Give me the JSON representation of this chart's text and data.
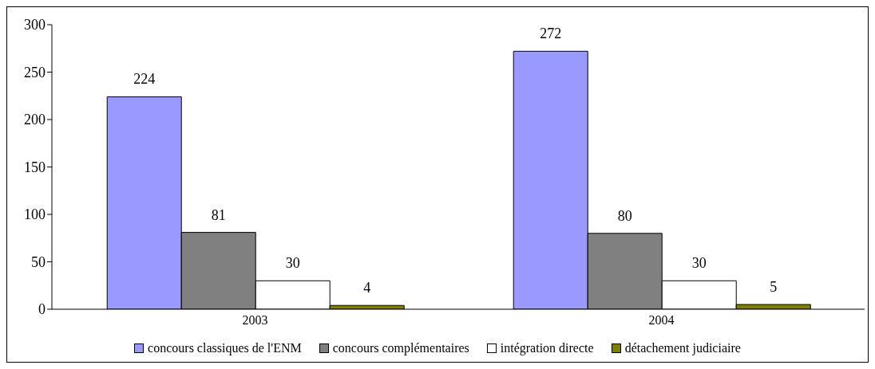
{
  "chart_data": {
    "type": "bar",
    "categories": [
      "2003",
      "2004"
    ],
    "series": [
      {
        "name": "concours classiques de l'ENM",
        "color": "#9999ff",
        "values": [
          224,
          272
        ]
      },
      {
        "name": "concours complémentaires",
        "color": "#808080",
        "values": [
          81,
          80
        ]
      },
      {
        "name": "intégration directe",
        "color": "#ffffff",
        "values": [
          30,
          30
        ]
      },
      {
        "name": "détachement judiciaire",
        "color": "#808000",
        "values": [
          4,
          5
        ]
      }
    ],
    "ylim": [
      0,
      300
    ],
    "yticks": [
      0,
      50,
      100,
      150,
      200,
      250,
      300
    ],
    "data_labels": true,
    "grid": false,
    "legend": "bottom"
  }
}
